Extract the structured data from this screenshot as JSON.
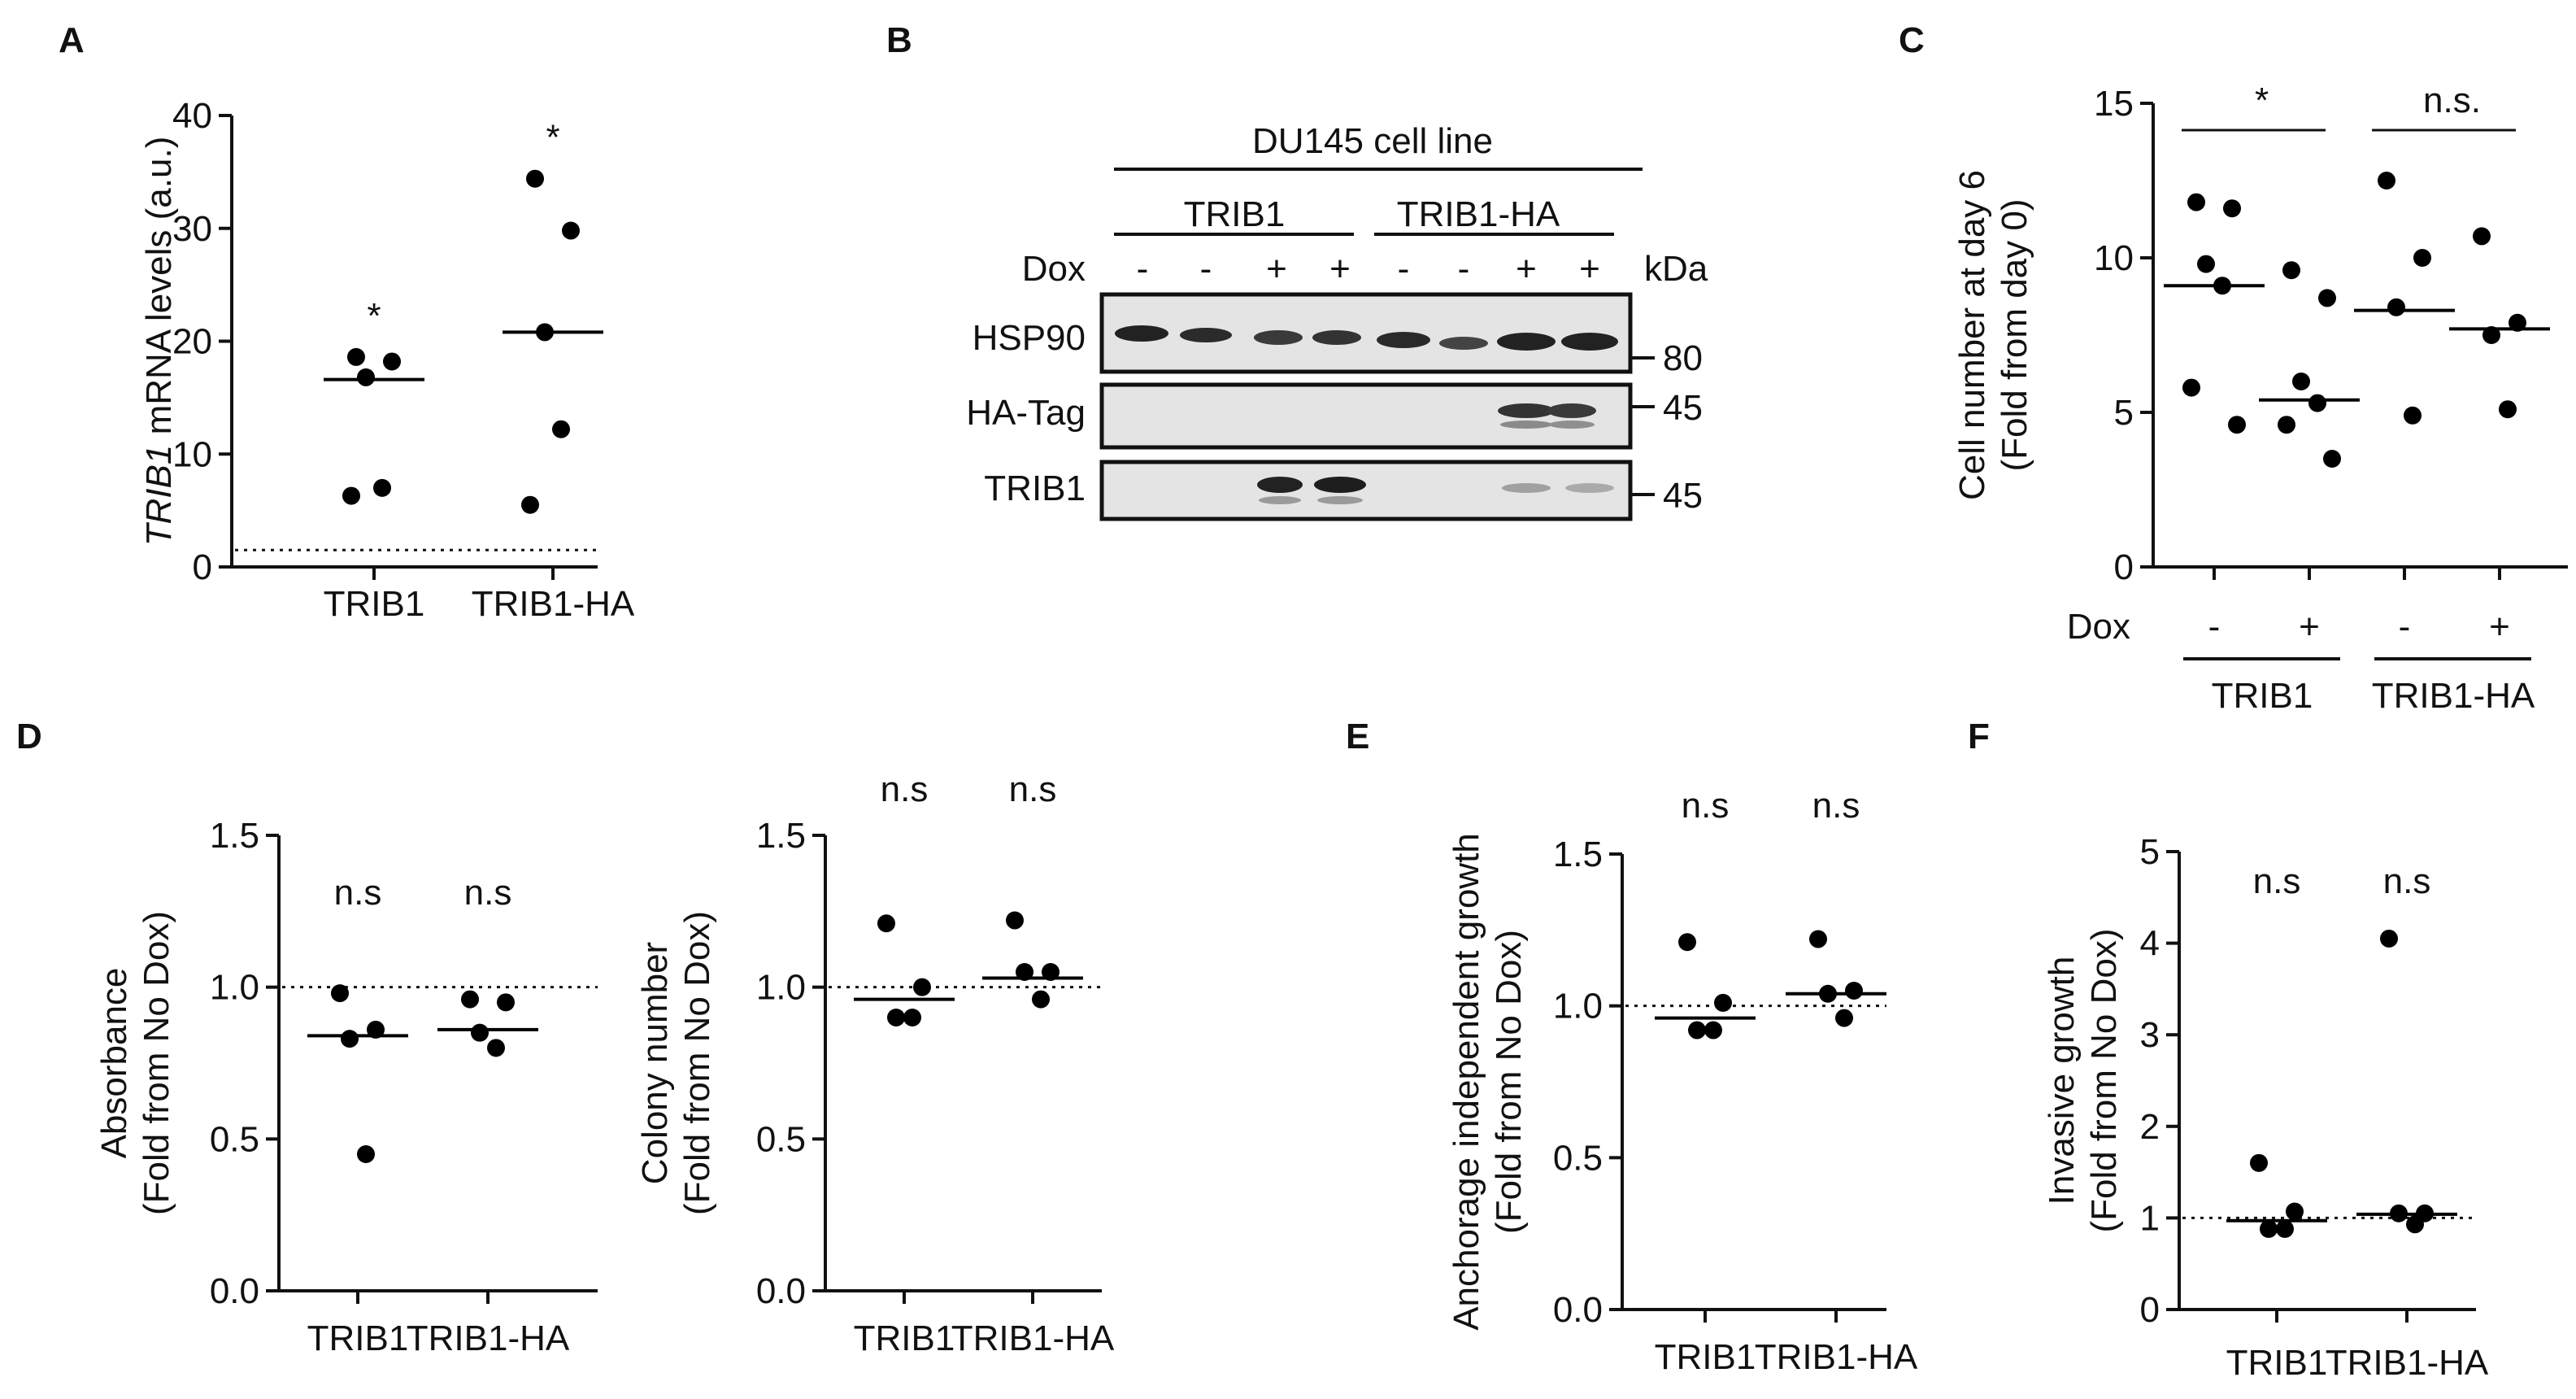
{
  "panels": {
    "A": {
      "label": "A"
    },
    "B": {
      "label": "B",
      "cell_line": "DU145 cell line",
      "groups": [
        "TRIB1",
        "TRIB1-HA"
      ],
      "dox_label": "Dox",
      "dox_lanes": [
        "-",
        "-",
        "+",
        "+",
        "-",
        "-",
        "+",
        "+"
      ],
      "kda_label": "kDa",
      "rows": [
        {
          "label": "HSP90",
          "marker": "80"
        },
        {
          "label": "HA-Tag",
          "marker": "45"
        },
        {
          "label": "TRIB1",
          "marker": "45"
        }
      ]
    },
    "C": {
      "label": "C",
      "dox_label": "Dox",
      "dox_signs": [
        "-",
        "+",
        "-",
        "+"
      ]
    },
    "D": {
      "label": "D"
    },
    "E": {
      "label": "E"
    },
    "F": {
      "label": "F"
    }
  },
  "chart_data": [
    {
      "id": "A",
      "type": "scatter",
      "ylabel_italic": "TRIB1",
      "ylabel_rest": " mRNA levels (a.u.)",
      "categories": [
        "TRIB1",
        "TRIB1-HA"
      ],
      "ylim": [
        0,
        40
      ],
      "yticks": [
        0,
        10,
        20,
        30,
        40
      ],
      "points": [
        [
          18.6,
          18.2,
          16.8,
          7.0,
          6.3
        ],
        [
          34.4,
          29.8,
          20.8,
          12.2,
          5.5
        ]
      ],
      "means": [
        16.6,
        20.8
      ],
      "refline": 1.5,
      "annotations": [
        "*",
        "*"
      ]
    },
    {
      "id": "C",
      "type": "scatter",
      "ylabel": [
        "Cell number at day 6",
        "(Fold from day 0)"
      ],
      "groups": [
        "TRIB1",
        "TRIB1-HA"
      ],
      "ylim": [
        0,
        15
      ],
      "yticks": [
        0,
        5,
        10,
        15
      ],
      "points": [
        [
          11.8,
          11.6,
          9.8,
          9.1,
          5.8,
          4.6
        ],
        [
          9.6,
          8.7,
          6.0,
          5.3,
          4.6,
          3.5
        ],
        [
          12.5,
          10.0,
          8.4,
          4.9
        ],
        [
          10.7,
          7.9,
          7.5,
          5.1
        ]
      ],
      "means": [
        9.1,
        5.4,
        8.3,
        7.7
      ],
      "annotations": [
        "*",
        "n.s."
      ]
    },
    {
      "id": "D-left",
      "type": "scatter",
      "ylabel": [
        "Absorbance",
        "(Fold from No Dox)"
      ],
      "categories": [
        "TRIB1",
        "TRIB1-HA"
      ],
      "ylim": [
        0,
        1.5
      ],
      "yticks": [
        "0.0",
        "0.5",
        "1.0",
        "1.5"
      ],
      "points": [
        [
          0.98,
          0.86,
          0.83,
          0.45
        ],
        [
          0.96,
          0.95,
          0.85,
          0.8
        ]
      ],
      "means": [
        0.84,
        0.86
      ],
      "refline": 1.0,
      "annotations": [
        "n.s",
        "n.s"
      ]
    },
    {
      "id": "D-right",
      "type": "scatter",
      "ylabel": [
        "Colony number",
        "(Fold from No Dox)"
      ],
      "categories": [
        "TRIB1",
        "TRIB1-HA"
      ],
      "ylim": [
        0,
        1.5
      ],
      "yticks": [
        "0.0",
        "0.5",
        "1.0",
        "1.5"
      ],
      "points": [
        [
          1.21,
          1.0,
          0.9,
          0.9
        ],
        [
          1.22,
          1.05,
          1.05,
          0.96
        ]
      ],
      "means": [
        0.96,
        1.03
      ],
      "refline": 1.0,
      "annotations": [
        "n.s",
        "n.s"
      ]
    },
    {
      "id": "E",
      "type": "scatter",
      "ylabel": [
        "Anchorage independent growth",
        "(Fold from No Dox)"
      ],
      "categories": [
        "TRIB1",
        "TRIB1-HA"
      ],
      "ylim": [
        0,
        1.5
      ],
      "yticks": [
        "0.0",
        "0.5",
        "1.0",
        "1.5"
      ],
      "points": [
        [
          1.21,
          1.01,
          0.92,
          0.92
        ],
        [
          1.22,
          1.05,
          1.04,
          0.96
        ]
      ],
      "means": [
        0.96,
        1.04
      ],
      "refline": 1.0,
      "annotations": [
        "n.s",
        "n.s"
      ]
    },
    {
      "id": "F",
      "type": "scatter",
      "ylabel": [
        "Invasive growth",
        "(Fold from No Dox)"
      ],
      "categories": [
        "TRIB1",
        "TRIB1-HA"
      ],
      "ylim": [
        0,
        5
      ],
      "yticks": [
        "0",
        "1",
        "2",
        "3",
        "4",
        "5"
      ],
      "points": [
        [
          1.6,
          1.07,
          0.88,
          0.88
        ],
        [
          4.05,
          1.05,
          1.05,
          0.93
        ]
      ],
      "means": [
        0.97,
        1.04
      ],
      "refline": 1.0,
      "annotations": [
        "n.s",
        "n.s"
      ]
    }
  ]
}
